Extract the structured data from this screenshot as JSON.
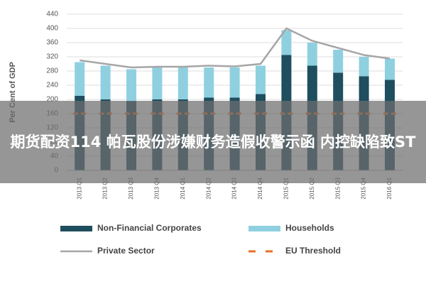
{
  "chart_data": {
    "type": "stacked-bar-line",
    "ylabel": "Per Cent of GDP",
    "categories": [
      "2013 Q1",
      "2013 Q2",
      "2013 Q3",
      "2013 Q4",
      "2014 Q1",
      "2014 Q2",
      "2014 Q3",
      "2014 Q4",
      "2015 Q1",
      "2015 Q2",
      "2015 Q3",
      "2015 Q4",
      "2016 Q1"
    ],
    "series": [
      {
        "name": "Non-Financial Corporates",
        "color": "#1f4e5f",
        "kind": "bar",
        "values": [
          210,
          200,
          195,
          200,
          200,
          205,
          205,
          215,
          325,
          295,
          275,
          265,
          255
        ]
      },
      {
        "name": "Households",
        "color": "#8fd0e0",
        "kind": "bar",
        "values": [
          95,
          95,
          90,
          90,
          90,
          85,
          85,
          80,
          70,
          65,
          65,
          55,
          60
        ]
      },
      {
        "name": "Private Sector",
        "color": "#a6a6a6",
        "kind": "line",
        "values": [
          310,
          300,
          290,
          292,
          292,
          295,
          293,
          300,
          400,
          365,
          345,
          325,
          315
        ]
      },
      {
        "name": "EU Threshold",
        "color": "#e8702a",
        "kind": "dash",
        "values": [
          160,
          160,
          160,
          160,
          160,
          160,
          160,
          160,
          160,
          160,
          160,
          160,
          160
        ]
      }
    ],
    "ylim": [
      0,
      440
    ],
    "yticks": [
      0,
      40,
      80,
      120,
      160,
      200,
      240,
      280,
      320,
      360,
      400,
      440
    ],
    "grid": true
  },
  "banner": {
    "text": "期货配资114 帕瓦股份涉嫌财务造假收警示函 内控缺陷致ST"
  }
}
